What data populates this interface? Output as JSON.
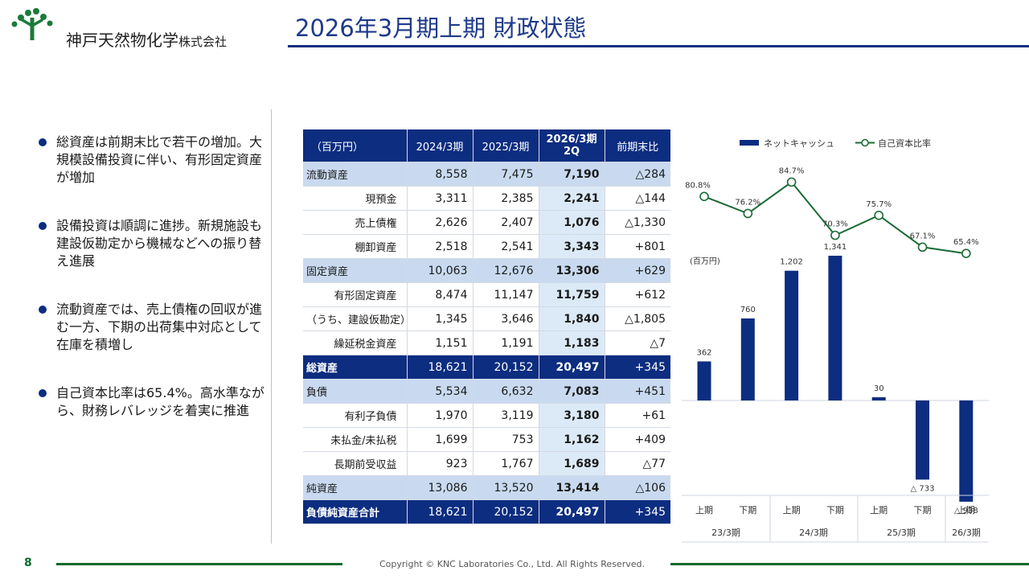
{
  "company": {
    "name": "神戸天然物化学",
    "suffix": "株式会社"
  },
  "slide": {
    "title": "2026年3月期上期 財政状態",
    "page_number": "8",
    "copyright": "Copyright © KNC Laboratories Co., Ltd. All Rights Reserved."
  },
  "bullets": [
    "総資産は前期末比で若干の増加。大規模設備投資に伴い、有形固定資産が増加",
    "設備投資は順調に進捗。新規施設も建設仮勘定から機械などへの振り替え進展",
    "流動資産では、売上債権の回収が進む一方、下期の出荷集中対応として在庫を積増し",
    "自己資本比率は65.4%。高水準ながら、財務レバレッジを着実に推進"
  ],
  "table": {
    "headers": [
      "（百万円）",
      "2024/3期",
      "2025/3期",
      "2026/3期",
      "2Q",
      "前期末比"
    ],
    "rows": [
      {
        "label": "流動資産",
        "style": "band",
        "v1": "8,558",
        "v2": "7,475",
        "v3": "7,190",
        "diff": "△284"
      },
      {
        "label": "現預金",
        "style": "sub",
        "v1": "3,311",
        "v2": "2,385",
        "v3": "2,241",
        "diff": "△144"
      },
      {
        "label": "売上債権",
        "style": "sub",
        "v1": "2,626",
        "v2": "2,407",
        "v3": "1,076",
        "diff": "△1,330"
      },
      {
        "label": "棚卸資産",
        "style": "sub",
        "v1": "2,518",
        "v2": "2,541",
        "v3": "3,343",
        "diff": "+801"
      },
      {
        "label": "固定資産",
        "style": "band",
        "v1": "10,063",
        "v2": "12,676",
        "v3": "13,306",
        "diff": "+629"
      },
      {
        "label": "有形固定資産",
        "style": "sub",
        "v1": "8,474",
        "v2": "11,147",
        "v3": "11,759",
        "diff": "+612"
      },
      {
        "label": "（うち、建設仮勘定）",
        "style": "sub",
        "v1": "1,345",
        "v2": "3,646",
        "v3": "1,840",
        "diff": "△1,805"
      },
      {
        "label": "繰延税金資産",
        "style": "sub",
        "v1": "1,151",
        "v2": "1,191",
        "v3": "1,183",
        "diff": "△7"
      },
      {
        "label": "総資産",
        "style": "total",
        "v1": "18,621",
        "v2": "20,152",
        "v3": "20,497",
        "diff": "+345"
      },
      {
        "label": "負債",
        "style": "band",
        "v1": "5,534",
        "v2": "6,632",
        "v3": "7,083",
        "diff": "+451"
      },
      {
        "label": "有利子負債",
        "style": "sub",
        "v1": "1,970",
        "v2": "3,119",
        "v3": "3,180",
        "diff": "+61"
      },
      {
        "label": "未払金/未払税",
        "style": "sub",
        "v1": "1,699",
        "v2": "753",
        "v3": "1,162",
        "diff": "+409"
      },
      {
        "label": "長期前受収益",
        "style": "sub",
        "v1": "923",
        "v2": "1,767",
        "v3": "1,689",
        "diff": "△77"
      },
      {
        "label": "純資産",
        "style": "band",
        "v1": "13,086",
        "v2": "13,520",
        "v3": "13,414",
        "diff": "△106"
      },
      {
        "label": "負債純資産合計",
        "style": "total",
        "v1": "18,621",
        "v2": "20,152",
        "v3": "20,497",
        "diff": "+345"
      }
    ]
  },
  "chart_data": {
    "type": "bar+line",
    "legend": {
      "bar": "ネットキャッシュ",
      "line": "自己資本比率"
    },
    "unit_label": "(百万円)",
    "periods": [
      "上期",
      "下期",
      "上期",
      "下期",
      "上期",
      "下期",
      "上期"
    ],
    "fiscal_years": [
      "23/3期",
      "24/3期",
      "25/3期",
      "26/3期"
    ],
    "net_cash": [
      362,
      760,
      1202,
      1341,
      30,
      -733,
      -938
    ],
    "net_cash_labels": [
      "362",
      "760",
      "1,202",
      "1,341",
      "30",
      "△ 733",
      "△ 938"
    ],
    "equity_ratio": [
      80.8,
      76.2,
      84.7,
      70.3,
      75.7,
      67.1,
      65.4
    ],
    "equity_ratio_labels": [
      "80.8%",
      "76.2%",
      "84.7%",
      "70.3%",
      "75.7%",
      "67.1%",
      "65.4%"
    ],
    "colors": {
      "bar": "#0c2d80",
      "line": "#1b6b35",
      "marker_fill": "#ffffff"
    }
  }
}
